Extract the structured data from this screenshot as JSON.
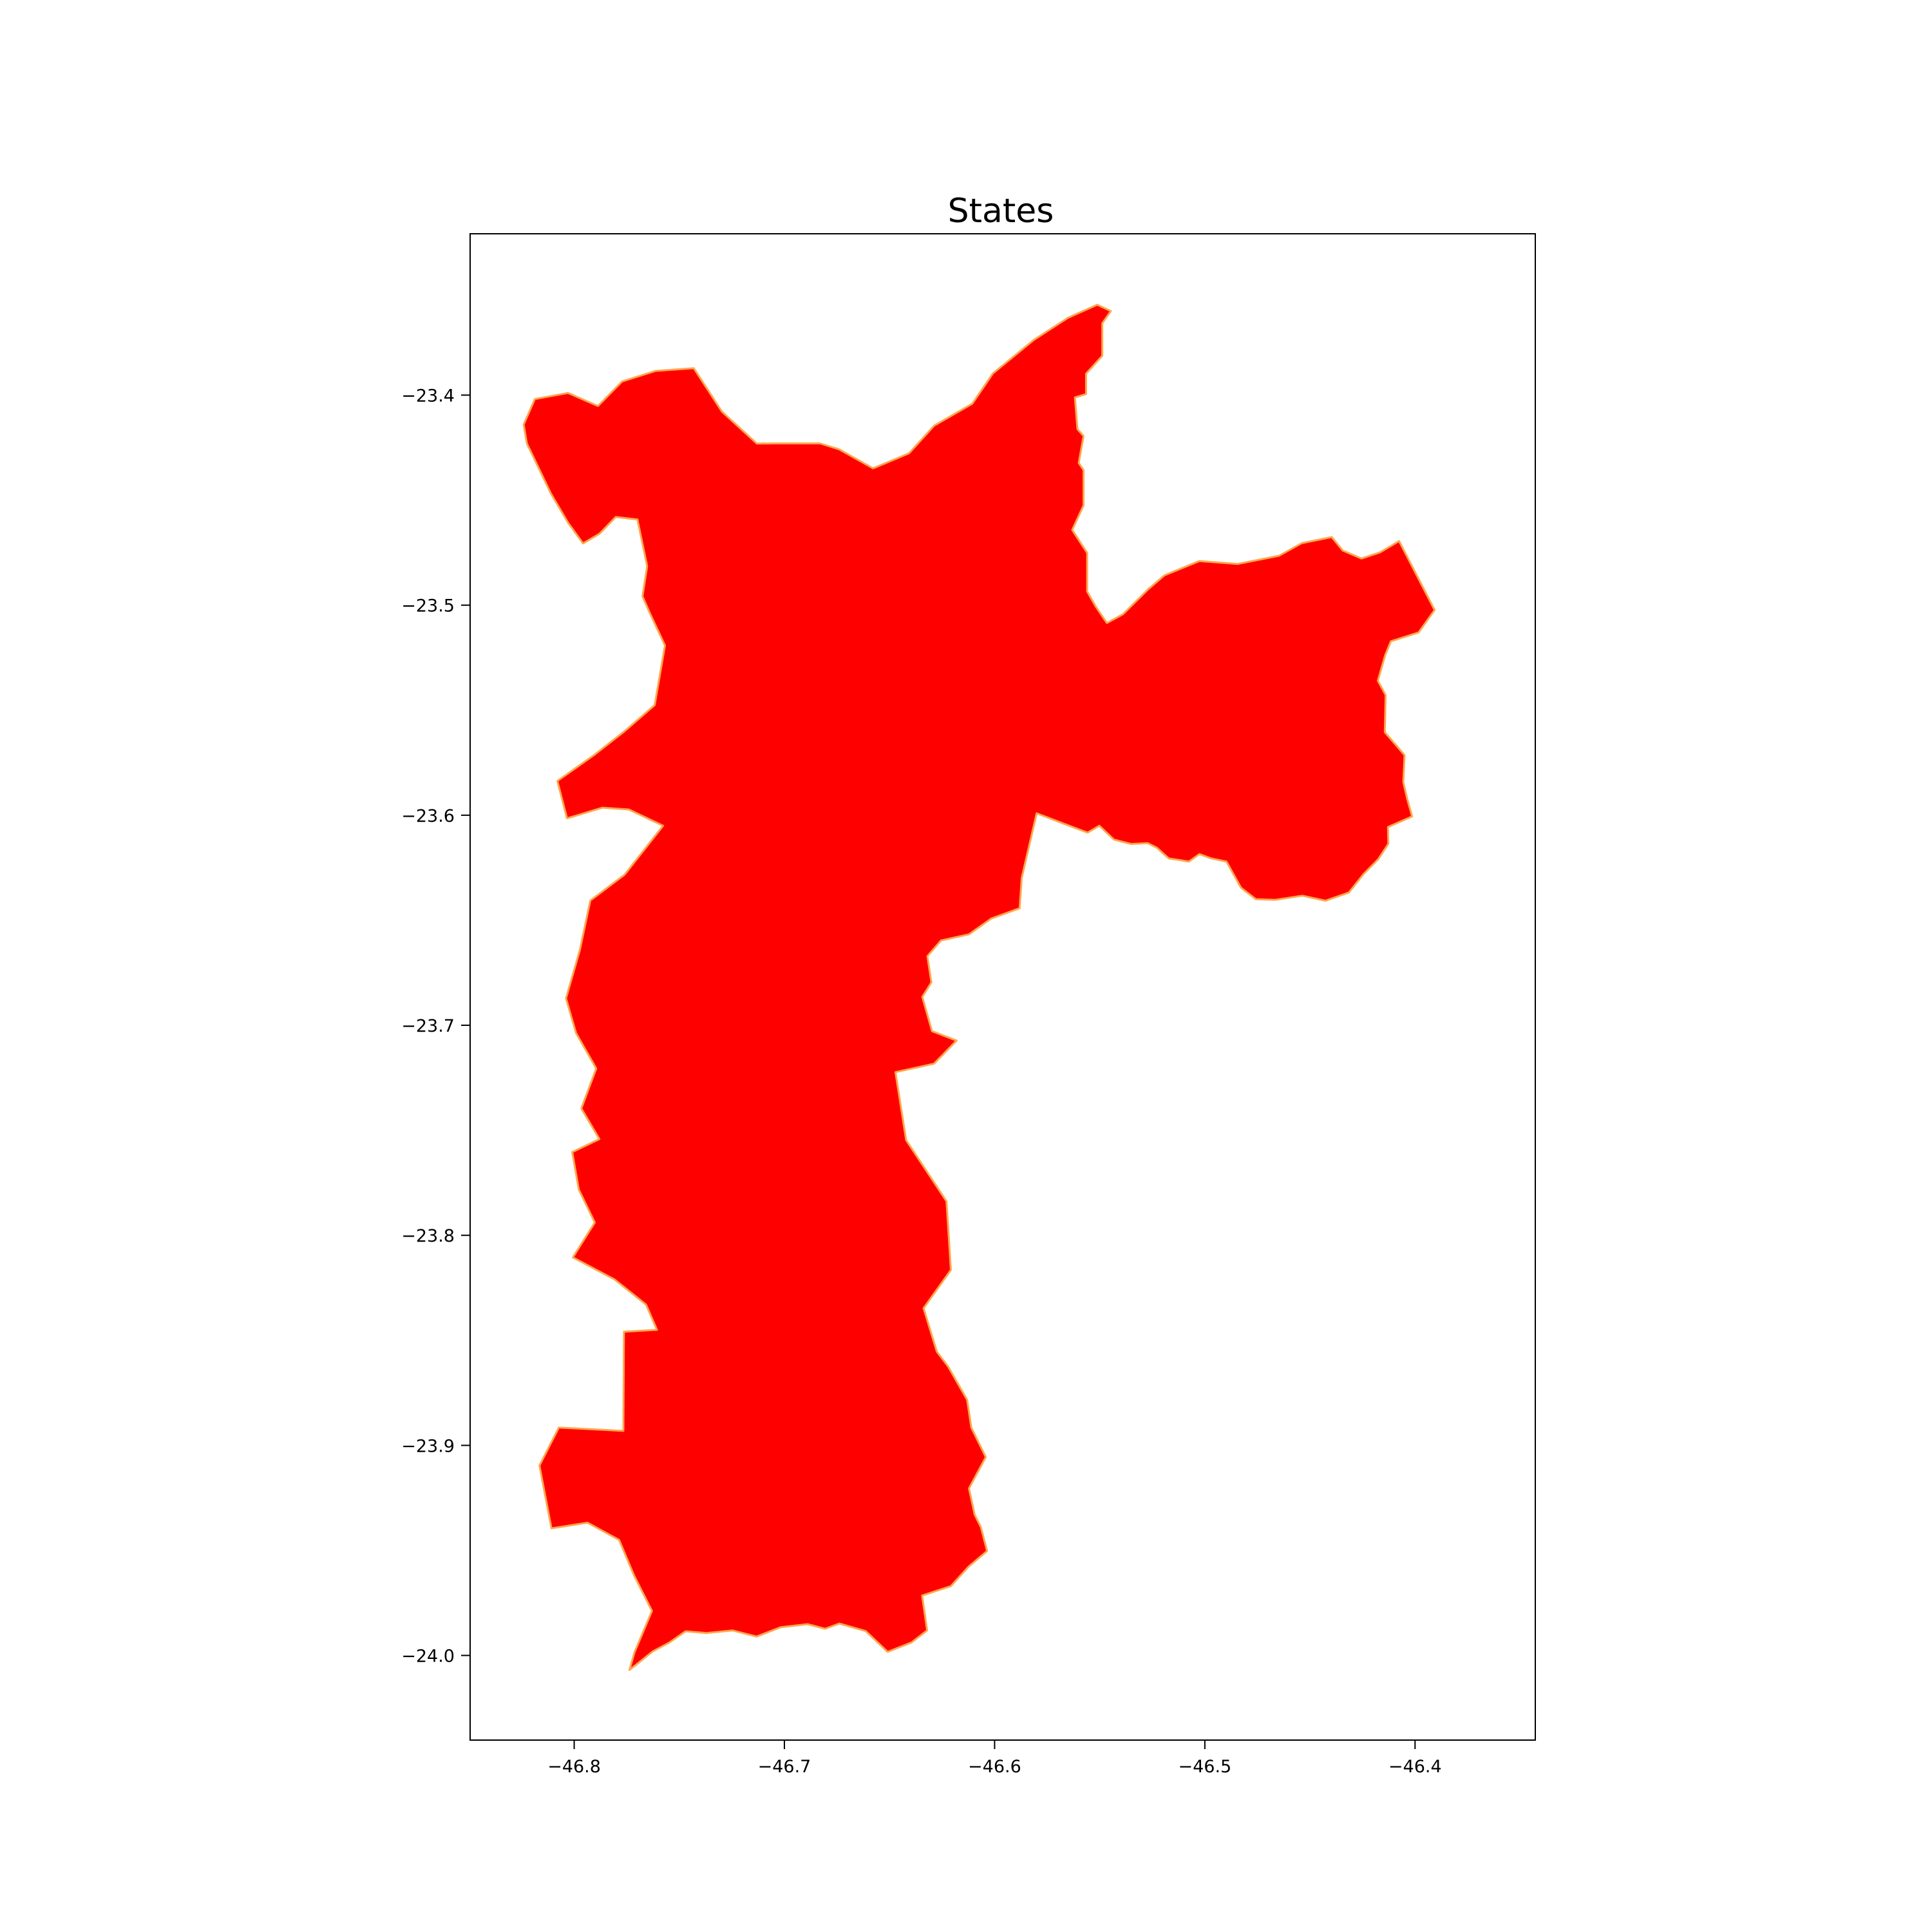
{
  "title": "States",
  "colors": {
    "region_fill": "#ff0000",
    "region_edge": "#ffa64d",
    "axes": "#000000",
    "background": "#ffffff"
  },
  "axes": {
    "xlim": [
      -46.8495,
      -46.3428
    ],
    "ylim": [
      -24.0403,
      -23.3232
    ],
    "x_ticks": [
      {
        "value": -46.8,
        "label": "−46.8"
      },
      {
        "value": -46.7,
        "label": "−46.7"
      },
      {
        "value": -46.6,
        "label": "−46.6"
      },
      {
        "value": -46.5,
        "label": "−46.5"
      },
      {
        "value": -46.4,
        "label": "−46.4"
      }
    ],
    "y_ticks": [
      {
        "value": -23.4,
        "label": "−23.4"
      },
      {
        "value": -23.5,
        "label": "−23.5"
      },
      {
        "value": -23.6,
        "label": "−23.6"
      },
      {
        "value": -23.7,
        "label": "−23.7"
      },
      {
        "value": -23.8,
        "label": "−23.8"
      },
      {
        "value": -23.9,
        "label": "−23.9"
      },
      {
        "value": -24.0,
        "label": "−24.0"
      }
    ]
  },
  "region": {
    "boundary": [
      [
        -46.5512,
        -23.357
      ],
      [
        -46.5447,
        -23.36
      ],
      [
        -46.5488,
        -23.3658
      ],
      [
        -46.5488,
        -23.3813
      ],
      [
        -46.5565,
        -23.3898
      ],
      [
        -46.5565,
        -23.3995
      ],
      [
        -46.5618,
        -23.4011
      ],
      [
        -46.5606,
        -23.4162
      ],
      [
        -46.5577,
        -23.4195
      ],
      [
        -46.56,
        -23.4323
      ],
      [
        -46.5577,
        -23.4357
      ],
      [
        -46.5577,
        -23.4525
      ],
      [
        -46.5631,
        -23.4642
      ],
      [
        -46.556,
        -23.4751
      ],
      [
        -46.556,
        -23.4935
      ],
      [
        -46.552,
        -23.5005
      ],
      [
        -46.5466,
        -23.5085
      ],
      [
        -46.5389,
        -23.5043
      ],
      [
        -46.527,
        -23.4925
      ],
      [
        -46.5192,
        -23.4858
      ],
      [
        -46.5026,
        -23.479
      ],
      [
        -46.4843,
        -23.4804
      ],
      [
        -46.4647,
        -23.4765
      ],
      [
        -46.4539,
        -23.4705
      ],
      [
        -46.4396,
        -23.4676
      ],
      [
        -46.4344,
        -23.474
      ],
      [
        -46.4255,
        -23.4778
      ],
      [
        -46.4167,
        -23.4749
      ],
      [
        -46.4076,
        -23.4695
      ],
      [
        -46.3907,
        -23.5023
      ],
      [
        -46.3983,
        -23.513
      ],
      [
        -46.4115,
        -23.5172
      ],
      [
        -46.4142,
        -23.5238
      ],
      [
        -46.4177,
        -23.536
      ],
      [
        -46.414,
        -23.5428
      ],
      [
        -46.4144,
        -23.5605
      ],
      [
        -46.405,
        -23.5714
      ],
      [
        -46.4056,
        -23.5842
      ],
      [
        -46.4037,
        -23.5924
      ],
      [
        -46.4014,
        -23.6006
      ],
      [
        -46.4129,
        -23.6056
      ],
      [
        -46.4127,
        -23.6136
      ],
      [
        -46.4175,
        -23.6209
      ],
      [
        -46.4245,
        -23.628
      ],
      [
        -46.4315,
        -23.6368
      ],
      [
        -46.4426,
        -23.6407
      ],
      [
        -46.4536,
        -23.6383
      ],
      [
        -46.4667,
        -23.6403
      ],
      [
        -46.4757,
        -23.64
      ],
      [
        -46.4828,
        -23.6345
      ],
      [
        -46.4897,
        -23.6221
      ],
      [
        -46.4972,
        -23.6205
      ],
      [
        -46.5026,
        -23.6185
      ],
      [
        -46.5076,
        -23.6221
      ],
      [
        -46.5122,
        -23.6213
      ],
      [
        -46.5171,
        -23.6206
      ],
      [
        -46.5228,
        -23.6155
      ],
      [
        -46.5272,
        -23.6133
      ],
      [
        -46.5351,
        -23.6137
      ],
      [
        -46.5432,
        -23.6116
      ],
      [
        -46.5502,
        -23.605
      ],
      [
        -46.5558,
        -23.6083
      ],
      [
        -46.58,
        -23.5991
      ],
      [
        -46.5871,
        -23.6298
      ],
      [
        -46.5881,
        -23.6443
      ],
      [
        -46.6016,
        -23.6492
      ],
      [
        -46.6122,
        -23.6567
      ],
      [
        -46.6255,
        -23.6596
      ],
      [
        -46.632,
        -23.6671
      ],
      [
        -46.6301,
        -23.6796
      ],
      [
        -46.6344,
        -23.6865
      ],
      [
        -46.6298,
        -23.7028
      ],
      [
        -46.6181,
        -23.7073
      ],
      [
        -46.6288,
        -23.7183
      ],
      [
        -46.6472,
        -23.7223
      ],
      [
        -46.6421,
        -23.7547
      ],
      [
        -46.6229,
        -23.7838
      ],
      [
        -46.6208,
        -23.8165
      ],
      [
        -46.6338,
        -23.8347
      ],
      [
        -46.6275,
        -23.8554
      ],
      [
        -46.6221,
        -23.8625
      ],
      [
        -46.6131,
        -23.8783
      ],
      [
        -46.6111,
        -23.8915
      ],
      [
        -46.6042,
        -23.9056
      ],
      [
        -46.6122,
        -23.9205
      ],
      [
        -46.6095,
        -23.933
      ],
      [
        -46.6066,
        -23.9388
      ],
      [
        -46.6036,
        -23.9503
      ],
      [
        -46.6124,
        -23.9577
      ],
      [
        -46.6208,
        -23.967
      ],
      [
        -46.6345,
        -23.9715
      ],
      [
        -46.6321,
        -23.9881
      ],
      [
        -46.6395,
        -23.9938
      ],
      [
        -46.6509,
        -23.9983
      ],
      [
        -46.6613,
        -23.9884
      ],
      [
        -46.6739,
        -23.9848
      ],
      [
        -46.6806,
        -23.9873
      ],
      [
        -46.689,
        -23.9851
      ],
      [
        -46.7018,
        -23.9866
      ],
      [
        -46.7132,
        -23.991
      ],
      [
        -46.7247,
        -23.9881
      ],
      [
        -46.7371,
        -23.9893
      ],
      [
        -46.747,
        -23.9885
      ],
      [
        -46.7548,
        -23.9939
      ],
      [
        -46.7627,
        -23.9981
      ],
      [
        -46.7706,
        -24.0045
      ],
      [
        -46.7737,
        -24.0069
      ],
      [
        -46.7713,
        -23.9985
      ],
      [
        -46.763,
        -23.9788
      ],
      [
        -46.7715,
        -23.9619
      ],
      [
        -46.7786,
        -23.945
      ],
      [
        -46.7936,
        -23.9368
      ],
      [
        -46.8108,
        -23.9395
      ],
      [
        -46.8165,
        -23.9096
      ],
      [
        -46.8073,
        -23.8915
      ],
      [
        -46.7766,
        -23.8931
      ],
      [
        -46.7763,
        -23.8459
      ],
      [
        -46.7606,
        -23.845
      ],
      [
        -46.7658,
        -23.833
      ],
      [
        -46.7808,
        -23.821
      ],
      [
        -46.8006,
        -23.8105
      ],
      [
        -46.7902,
        -23.7939
      ],
      [
        -46.7978,
        -23.7782
      ],
      [
        -46.8009,
        -23.7604
      ],
      [
        -46.788,
        -23.7542
      ],
      [
        -46.7966,
        -23.7396
      ],
      [
        -46.7895,
        -23.7206
      ],
      [
        -46.7991,
        -23.7037
      ],
      [
        -46.8039,
        -23.6872
      ],
      [
        -46.7973,
        -23.6642
      ],
      [
        -46.7923,
        -23.6406
      ],
      [
        -46.776,
        -23.6283
      ],
      [
        -46.7577,
        -23.605
      ],
      [
        -46.774,
        -23.5973
      ],
      [
        -46.7865,
        -23.5964
      ],
      [
        -46.8034,
        -23.6015
      ],
      [
        -46.808,
        -23.5837
      ],
      [
        -46.7904,
        -23.5713
      ],
      [
        -46.776,
        -23.56
      ],
      [
        -46.7617,
        -23.5476
      ],
      [
        -46.7568,
        -23.5192
      ],
      [
        -46.764,
        -23.5038
      ],
      [
        -46.7675,
        -23.4958
      ],
      [
        -46.7653,
        -23.4814
      ],
      [
        -46.7699,
        -23.4592
      ],
      [
        -46.7802,
        -23.458
      ],
      [
        -46.788,
        -23.466
      ],
      [
        -46.7958,
        -23.4706
      ],
      [
        -46.8028,
        -23.4609
      ],
      [
        -46.811,
        -23.447
      ],
      [
        -46.8225,
        -23.423
      ],
      [
        -46.824,
        -23.414
      ],
      [
        -46.8187,
        -23.4019
      ],
      [
        -46.8029,
        -23.399
      ],
      [
        -46.7887,
        -23.4052
      ],
      [
        -46.7772,
        -23.3935
      ],
      [
        -46.7613,
        -23.3885
      ],
      [
        -46.7431,
        -23.3872
      ],
      [
        -46.7297,
        -23.4079
      ],
      [
        -46.7131,
        -23.4231
      ],
      [
        -46.7015,
        -23.423
      ],
      [
        -46.6831,
        -23.423
      ],
      [
        -46.674,
        -23.4258
      ],
      [
        -46.6578,
        -23.4349
      ],
      [
        -46.6407,
        -23.4277
      ],
      [
        -46.6288,
        -23.4146
      ],
      [
        -46.6106,
        -23.4041
      ],
      [
        -46.6008,
        -23.3897
      ],
      [
        -46.5813,
        -23.3737
      ],
      [
        -46.5651,
        -23.3632
      ]
    ]
  }
}
